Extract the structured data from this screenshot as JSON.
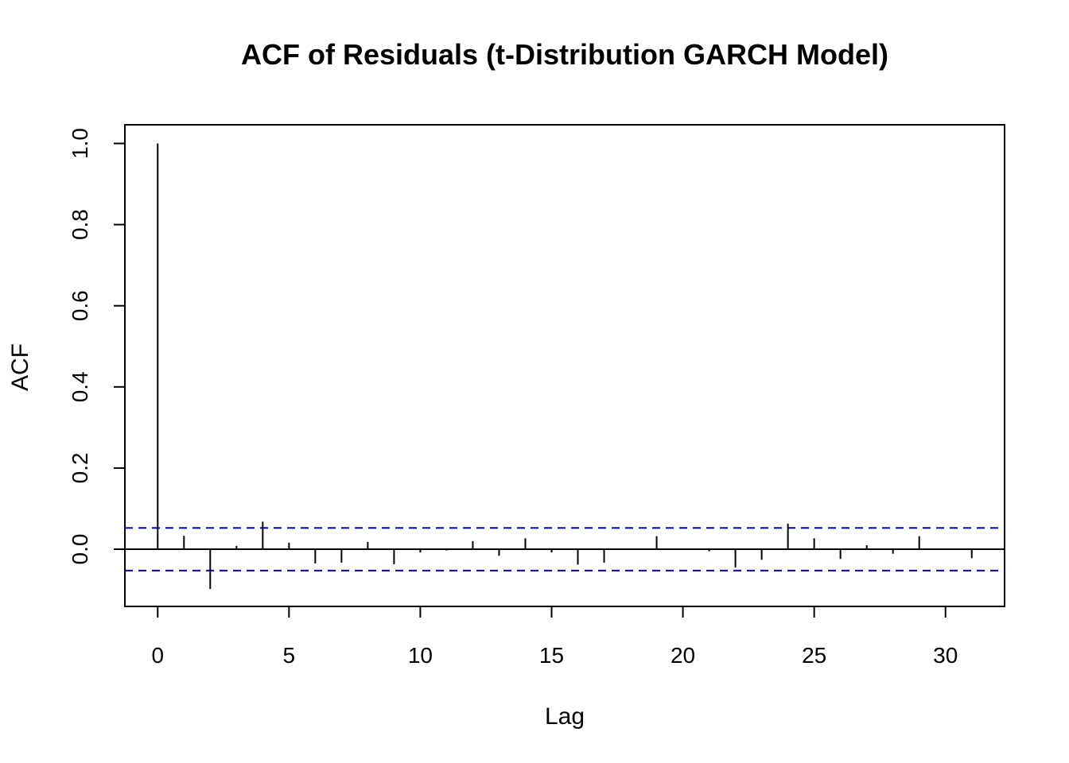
{
  "chart_data": {
    "type": "bar",
    "title": "ACF of Residuals (t-Distribution GARCH Model)",
    "xlabel": "Lag",
    "ylabel": "ACF",
    "xlim": [
      -1.25,
      32.25
    ],
    "ylim": [
      -0.141,
      1.046
    ],
    "x_ticks": [
      0,
      5,
      10,
      15,
      20,
      25,
      30
    ],
    "x_tick_labels": [
      "0",
      "5",
      "10",
      "15",
      "20",
      "25",
      "30"
    ],
    "y_ticks": [
      0.0,
      0.2,
      0.4,
      0.6,
      0.8,
      1.0
    ],
    "y_tick_labels": [
      "0.0",
      "0.2",
      "0.4",
      "0.6",
      "0.8",
      "1.0"
    ],
    "lags": [
      0,
      1,
      2,
      3,
      4,
      5,
      6,
      7,
      8,
      9,
      10,
      11,
      12,
      13,
      14,
      15,
      16,
      17,
      18,
      19,
      20,
      21,
      22,
      23,
      24,
      25,
      26,
      27,
      28,
      29,
      30,
      31
    ],
    "values": [
      1.0,
      0.033,
      -0.098,
      0.008,
      0.068,
      0.016,
      -0.035,
      -0.033,
      0.018,
      -0.037,
      -0.008,
      -0.003,
      0.02,
      -0.016,
      0.027,
      -0.008,
      -0.038,
      -0.033,
      -0.002,
      0.032,
      -0.002,
      -0.005,
      -0.045,
      -0.026,
      0.063,
      0.027,
      -0.024,
      0.01,
      -0.011,
      0.032,
      -0.002,
      -0.022
    ],
    "confidence_bound": 0.0525,
    "confidence_color": "#0000cd",
    "grid": false,
    "legend": "none"
  }
}
